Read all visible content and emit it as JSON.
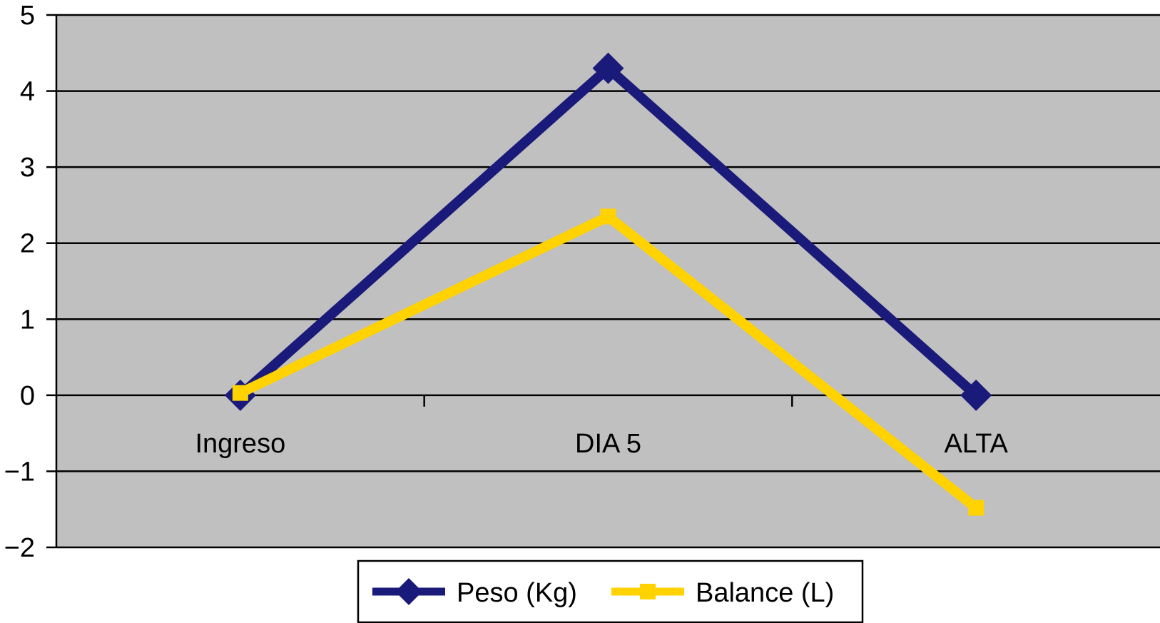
{
  "chart_data": {
    "type": "line",
    "categories": [
      "Ingreso",
      "DIA 5",
      "ALTA"
    ],
    "series": [
      {
        "name": "Peso (Kg)",
        "values": [
          0,
          4.3,
          0
        ],
        "color": "#1a1a7a",
        "marker": "diamond"
      },
      {
        "name": "Balance (L)",
        "values": [
          0.03,
          2.35,
          -1.48
        ],
        "color": "#ffd200",
        "marker": "square"
      }
    ],
    "yticks": [
      "5",
      "4",
      "3",
      "2",
      "1",
      "0",
      "−1",
      "−2"
    ],
    "ylim": [
      -2,
      5
    ],
    "grid": true,
    "plot_background": "#c0c0c0",
    "legend_position": "bottom",
    "title": "",
    "xlabel": "",
    "ylabel": ""
  }
}
